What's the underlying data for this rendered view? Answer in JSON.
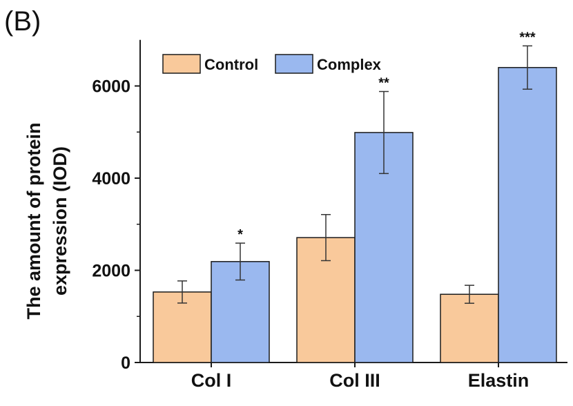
{
  "panel_label": "(B)",
  "chart_data": {
    "type": "bar",
    "title": "",
    "xlabel": "",
    "ylabel_lines": [
      "The amount of protein",
      "expression (IOD)"
    ],
    "categories": [
      "Col I",
      "Col III",
      "Elastin"
    ],
    "ylim": [
      0,
      7000
    ],
    "yticks": [
      0,
      2000,
      4000,
      6000
    ],
    "ytick_labels": [
      "0",
      "2000",
      "4000",
      "6000"
    ],
    "legend_position": "top-left",
    "grid": false,
    "series": [
      {
        "name": "Control",
        "color": "#f9c99b",
        "values": [
          1530,
          2710,
          1480
        ],
        "errors": [
          240,
          500,
          195
        ]
      },
      {
        "name": "Complex",
        "color": "#9ab8ef",
        "values": [
          2190,
          4990,
          6400
        ],
        "errors": [
          400,
          890,
          470
        ]
      }
    ],
    "significance": [
      "*",
      "**",
      "***"
    ],
    "edge_color": "#1a1a1a",
    "error_color": "#333333"
  }
}
